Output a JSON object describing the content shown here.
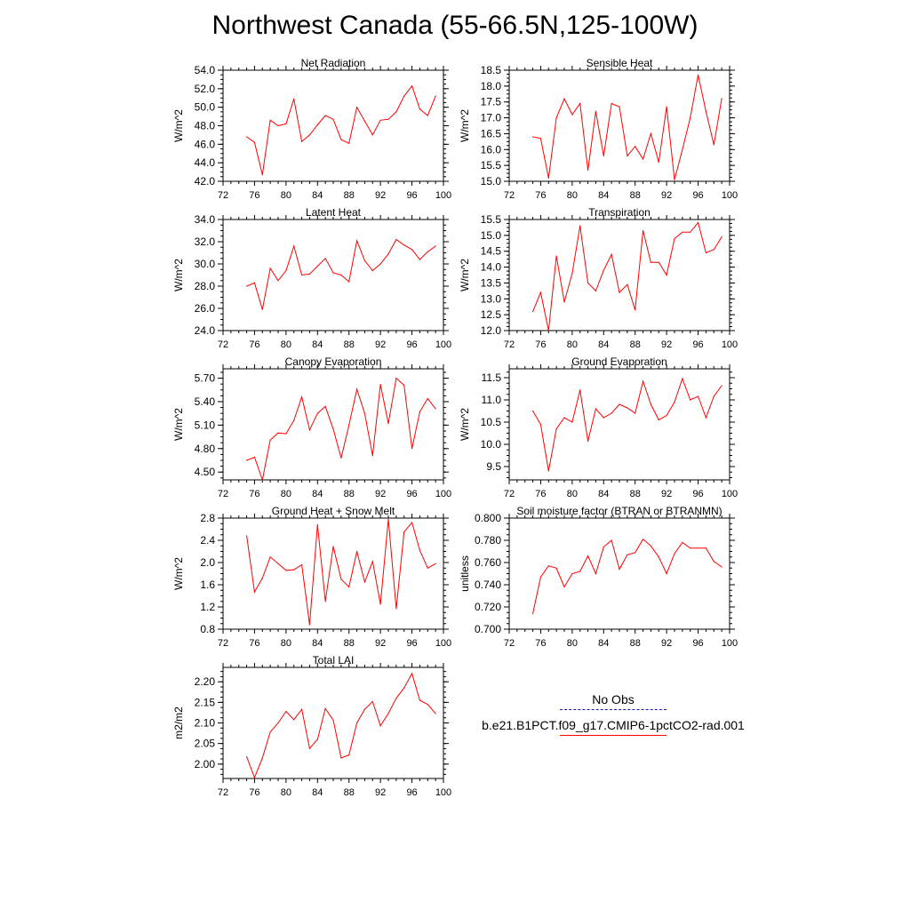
{
  "figure": {
    "title": "Northwest Canada (55-66.5N,125-100W)"
  },
  "legend": [
    {
      "label": "No Obs",
      "color": "#1a1aa6",
      "style": "dashed"
    },
    {
      "label": "b.e21.B1PCT.f09_g17.CMIP6-1pctCO2-rad.001",
      "color": "#ff0000",
      "style": "solid"
    }
  ],
  "chart_data": [
    {
      "type": "line",
      "title": "Net Radiation",
      "ylabel": "W/m^2",
      "xlim": [
        72,
        100
      ],
      "xticks": [
        "72",
        "76",
        "80",
        "84",
        "88",
        "92",
        "96",
        "100"
      ],
      "ylim": [
        42.0,
        54.0
      ],
      "yticks": [
        "42.0",
        "44.0",
        "46.0",
        "48.0",
        "50.0",
        "52.0",
        "54.0"
      ],
      "series": [
        {
          "color": "#ff0000",
          "x": [
            75,
            76,
            77,
            78,
            79,
            80,
            81,
            82,
            83,
            84,
            85,
            86,
            87,
            88,
            89,
            90,
            91,
            92,
            93,
            94,
            95,
            96,
            97,
            98,
            99
          ],
          "y": [
            46.8,
            46.2,
            42.7,
            48.6,
            48.0,
            48.2,
            50.9,
            46.3,
            47.0,
            48.1,
            49.1,
            48.7,
            46.5,
            46.1,
            50.0,
            48.5,
            47.0,
            48.6,
            48.7,
            49.5,
            51.2,
            52.3,
            49.8,
            49.1,
            51.2
          ]
        }
      ]
    },
    {
      "type": "line",
      "title": "Sensible Heat",
      "ylabel": "W/m^2",
      "xlim": [
        72,
        100
      ],
      "xticks": [
        "72",
        "76",
        "80",
        "84",
        "88",
        "92",
        "96",
        "100"
      ],
      "ylim": [
        15.0,
        18.5
      ],
      "yticks": [
        "15.0",
        "15.5",
        "16.0",
        "16.5",
        "17.0",
        "17.5",
        "18.0",
        "18.5"
      ],
      "series": [
        {
          "color": "#ff0000",
          "x": [
            75,
            76,
            77,
            78,
            79,
            80,
            81,
            82,
            83,
            84,
            85,
            86,
            87,
            88,
            89,
            90,
            91,
            92,
            93,
            94,
            95,
            96,
            97,
            98,
            99
          ],
          "y": [
            16.4,
            16.35,
            15.1,
            17.0,
            17.6,
            17.1,
            17.45,
            15.35,
            17.2,
            15.8,
            17.45,
            17.35,
            15.8,
            16.1,
            15.7,
            16.5,
            15.6,
            17.35,
            15.05,
            16.0,
            17.0,
            18.35,
            17.2,
            16.15,
            17.6
          ]
        }
      ]
    },
    {
      "type": "line",
      "title": "Latent Heat",
      "ylabel": "W/m^2",
      "xlim": [
        72,
        100
      ],
      "xticks": [
        "72",
        "76",
        "80",
        "84",
        "88",
        "92",
        "96",
        "100"
      ],
      "ylim": [
        24.0,
        34.0
      ],
      "yticks": [
        "24.0",
        "26.0",
        "28.0",
        "30.0",
        "32.0",
        "34.0"
      ],
      "series": [
        {
          "color": "#ff0000",
          "x": [
            75,
            76,
            77,
            78,
            79,
            80,
            81,
            82,
            83,
            84,
            85,
            86,
            87,
            88,
            89,
            90,
            91,
            92,
            93,
            94,
            95,
            96,
            97,
            98,
            99
          ],
          "y": [
            28.0,
            28.3,
            25.9,
            29.6,
            28.5,
            29.4,
            31.6,
            29.0,
            29.1,
            29.8,
            30.5,
            29.2,
            29.0,
            28.4,
            32.1,
            30.3,
            29.4,
            30.0,
            30.9,
            32.2,
            31.7,
            31.3,
            30.4,
            31.1,
            31.6
          ]
        }
      ]
    },
    {
      "type": "line",
      "title": "Transpiration",
      "ylabel": "W/m^2",
      "xlim": [
        72,
        100
      ],
      "xticks": [
        "72",
        "76",
        "80",
        "84",
        "88",
        "92",
        "96",
        "100"
      ],
      "ylim": [
        12.0,
        15.5
      ],
      "yticks": [
        "12.0",
        "12.5",
        "13.0",
        "13.5",
        "14.0",
        "14.5",
        "15.0",
        "15.5"
      ],
      "series": [
        {
          "color": "#ff0000",
          "x": [
            75,
            76,
            77,
            78,
            79,
            80,
            81,
            82,
            83,
            84,
            85,
            86,
            87,
            88,
            89,
            90,
            91,
            92,
            93,
            94,
            95,
            96,
            97,
            98,
            99
          ],
          "y": [
            12.6,
            13.2,
            12.0,
            14.35,
            12.9,
            13.8,
            15.3,
            13.5,
            13.25,
            13.9,
            14.4,
            13.2,
            13.45,
            12.65,
            15.15,
            14.15,
            14.15,
            13.75,
            14.9,
            15.1,
            15.1,
            15.4,
            14.45,
            14.55,
            14.95
          ]
        }
      ]
    },
    {
      "type": "line",
      "title": "Canopy Evaporation",
      "ylabel": "W/m^2",
      "xlim": [
        72,
        100
      ],
      "xticks": [
        "72",
        "76",
        "80",
        "84",
        "88",
        "92",
        "96",
        "100"
      ],
      "ylim": [
        4.4,
        5.82
      ],
      "yticks": [
        "4.50",
        "4.80",
        "5.10",
        "5.40",
        "5.70"
      ],
      "series": [
        {
          "color": "#ff0000",
          "x": [
            75,
            76,
            77,
            78,
            79,
            80,
            81,
            82,
            83,
            84,
            85,
            86,
            87,
            88,
            89,
            90,
            91,
            92,
            93,
            94,
            95,
            96,
            97,
            98,
            99
          ],
          "y": [
            4.65,
            4.69,
            4.4,
            4.91,
            5.0,
            4.99,
            5.16,
            5.46,
            5.04,
            5.25,
            5.34,
            5.05,
            4.68,
            5.1,
            5.56,
            5.25,
            4.71,
            5.62,
            5.12,
            5.7,
            5.61,
            4.8,
            5.27,
            5.44,
            5.31
          ]
        }
      ]
    },
    {
      "type": "line",
      "title": "Ground Evaporation",
      "ylabel": "W/m^2",
      "xlim": [
        72,
        100
      ],
      "xticks": [
        "72",
        "76",
        "80",
        "84",
        "88",
        "92",
        "96",
        "100"
      ],
      "ylim": [
        9.2,
        11.7
      ],
      "yticks": [
        "9.5",
        "10.0",
        "10.5",
        "11.0",
        "11.5"
      ],
      "series": [
        {
          "color": "#ff0000",
          "x": [
            75,
            76,
            77,
            78,
            79,
            80,
            81,
            82,
            83,
            84,
            85,
            86,
            87,
            88,
            89,
            90,
            91,
            92,
            93,
            94,
            95,
            96,
            97,
            98,
            99
          ],
          "y": [
            10.75,
            10.45,
            9.4,
            10.35,
            10.6,
            10.5,
            11.22,
            10.07,
            10.8,
            10.6,
            10.7,
            10.9,
            10.82,
            10.7,
            11.42,
            10.9,
            10.55,
            10.65,
            10.95,
            11.48,
            11.0,
            11.08,
            10.6,
            11.08,
            11.32
          ]
        }
      ]
    },
    {
      "type": "line",
      "title": "Ground Heat + Snow Melt",
      "ylabel": "W/m^2",
      "xlim": [
        72,
        100
      ],
      "xticks": [
        "72",
        "76",
        "80",
        "84",
        "88",
        "92",
        "96",
        "100"
      ],
      "ylim": [
        0.8,
        2.8
      ],
      "yticks": [
        "0.8",
        "1.2",
        "1.6",
        "2.0",
        "2.4",
        "2.8"
      ],
      "series": [
        {
          "color": "#ff0000",
          "x": [
            75,
            76,
            77,
            78,
            79,
            80,
            81,
            82,
            83,
            84,
            85,
            86,
            87,
            88,
            89,
            90,
            91,
            92,
            93,
            94,
            95,
            96,
            97,
            98,
            99
          ],
          "y": [
            2.48,
            1.47,
            1.72,
            2.1,
            1.98,
            1.86,
            1.87,
            1.96,
            0.88,
            2.68,
            1.3,
            2.29,
            1.7,
            1.56,
            2.2,
            1.65,
            2.02,
            1.25,
            2.78,
            1.17,
            2.55,
            2.72,
            2.22,
            1.9,
            1.98
          ]
        }
      ]
    },
    {
      "type": "line",
      "title": "Soil moisture factor (BTRAN or BTRANMN)",
      "ylabel": "unitless",
      "xlim": [
        72,
        100
      ],
      "xticks": [
        "72",
        "76",
        "80",
        "84",
        "88",
        "92",
        "96",
        "100"
      ],
      "ylim": [
        0.7,
        0.8
      ],
      "yticks": [
        "0.700",
        "0.720",
        "0.740",
        "0.760",
        "0.780",
        "0.800"
      ],
      "series": [
        {
          "color": "#ff0000",
          "x": [
            75,
            76,
            77,
            78,
            79,
            80,
            81,
            82,
            83,
            84,
            85,
            86,
            87,
            88,
            89,
            90,
            91,
            92,
            93,
            94,
            95,
            96,
            97,
            98,
            99
          ],
          "y": [
            0.714,
            0.747,
            0.757,
            0.755,
            0.738,
            0.75,
            0.752,
            0.766,
            0.75,
            0.774,
            0.78,
            0.754,
            0.767,
            0.769,
            0.781,
            0.775,
            0.765,
            0.75,
            0.768,
            0.778,
            0.773,
            0.773,
            0.773,
            0.761,
            0.756
          ]
        }
      ]
    },
    {
      "type": "line",
      "title": "Total LAI",
      "ylabel": "m2/m2",
      "xlim": [
        72,
        100
      ],
      "xticks": [
        "72",
        "76",
        "80",
        "84",
        "88",
        "92",
        "96",
        "100"
      ],
      "ylim": [
        1.965,
        2.235
      ],
      "yticks": [
        "2.00",
        "2.05",
        "2.10",
        "2.15",
        "2.20"
      ],
      "series": [
        {
          "color": "#ff0000",
          "x": [
            75,
            76,
            77,
            78,
            79,
            80,
            81,
            82,
            83,
            84,
            85,
            86,
            87,
            88,
            89,
            90,
            91,
            92,
            93,
            94,
            95,
            96,
            97,
            98,
            99
          ],
          "y": [
            2.018,
            1.967,
            2.015,
            2.078,
            2.1,
            2.128,
            2.108,
            2.133,
            2.038,
            2.06,
            2.135,
            2.107,
            2.015,
            2.022,
            2.1,
            2.133,
            2.152,
            2.093,
            2.123,
            2.16,
            2.185,
            2.22,
            2.155,
            2.145,
            2.123
          ]
        }
      ]
    }
  ]
}
